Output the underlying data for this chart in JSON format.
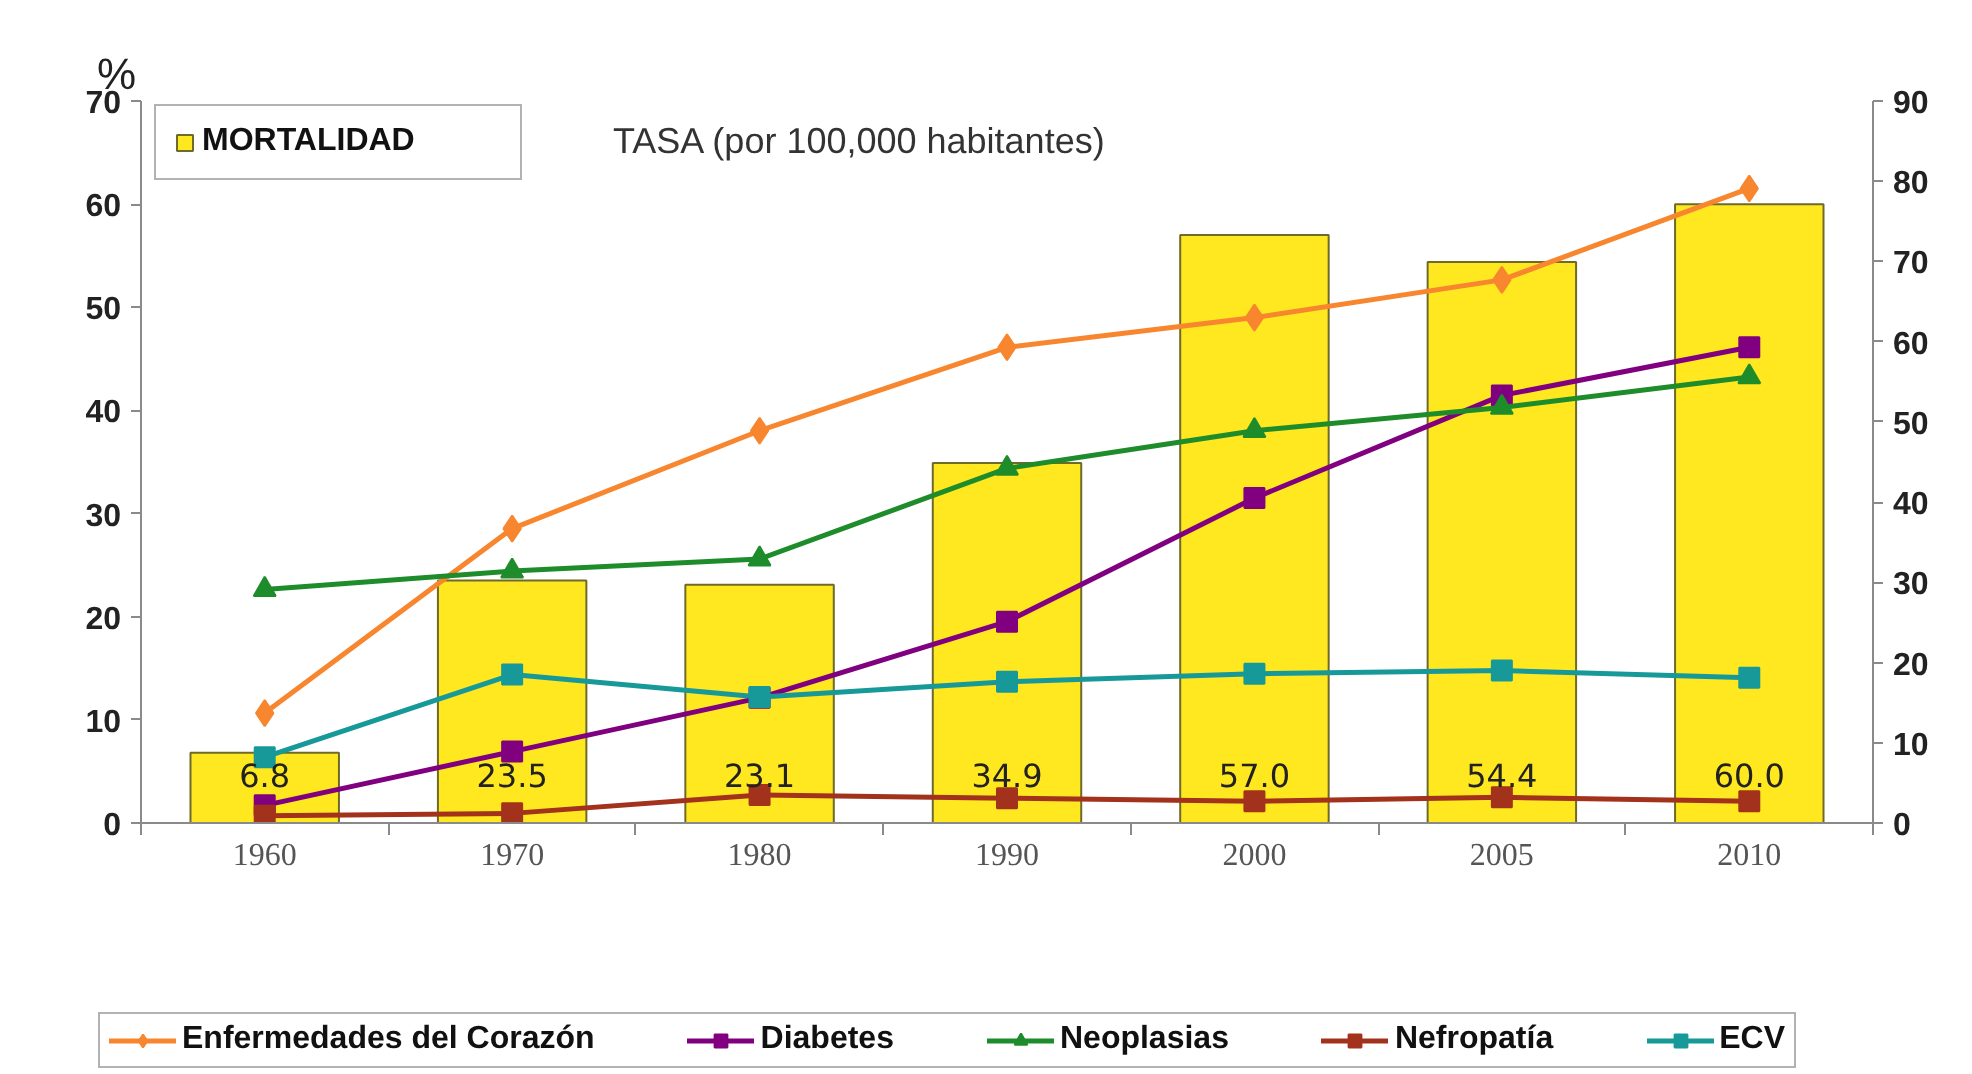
{
  "chart_data": {
    "type": "bar",
    "ylabel": "%",
    "annotations": [
      "TASA (por 100,000 habitantes)"
    ],
    "categories": [
      "1960",
      "1970",
      "1980",
      "1990",
      "2000",
      "2005",
      "2010"
    ],
    "series": [
      {
        "name": "MORTALIDAD",
        "color": "#ffe81f",
        "values": [
          6.8,
          23.5,
          23.1,
          34.9,
          57.0,
          54.4,
          60.0
        ],
        "value_labels": [
          "6.8",
          "23.5",
          "23.1",
          "34.9",
          "57.0",
          "54.4",
          "60.0"
        ]
      },
      {
        "name": "Enfermedades del Corazón",
        "type": "line",
        "axis": "y2",
        "color": "#f7862f",
        "marker": "diamond",
        "values": [
          13.7,
          36.7,
          48.9,
          59.3,
          63.0,
          67.7,
          79.1
        ]
      },
      {
        "name": "Diabetes",
        "type": "line",
        "axis": "y2",
        "color": "#800080",
        "marker": "square",
        "values": [
          2.2,
          8.9,
          15.6,
          25.1,
          40.5,
          53.3,
          59.3
        ]
      },
      {
        "name": "Neoplasias",
        "type": "line",
        "axis": "y2",
        "color": "#1e8c2a",
        "marker": "triangle",
        "values": [
          29.1,
          31.4,
          32.9,
          44.2,
          48.9,
          51.8,
          55.6
        ]
      },
      {
        "name": "Nefropatía",
        "type": "line",
        "axis": "y2",
        "color": "#a3321c",
        "marker": "square",
        "values": [
          0.9,
          1.2,
          3.5,
          3.1,
          2.7,
          3.2,
          2.7
        ]
      },
      {
        "name": "ECV",
        "type": "line",
        "axis": "y2",
        "color": "#17999a",
        "marker": "square",
        "values": [
          8.2,
          18.5,
          15.7,
          17.6,
          18.6,
          19.0,
          18.1
        ]
      }
    ],
    "ylim": [
      0,
      70
    ],
    "yticks": [
      0,
      10,
      20,
      30,
      40,
      50,
      60,
      70
    ],
    "y2lim": [
      0,
      90
    ],
    "y2ticks": [
      0,
      10,
      20,
      30,
      40,
      50,
      60,
      70,
      80,
      90
    ],
    "legend": "bottom"
  }
}
